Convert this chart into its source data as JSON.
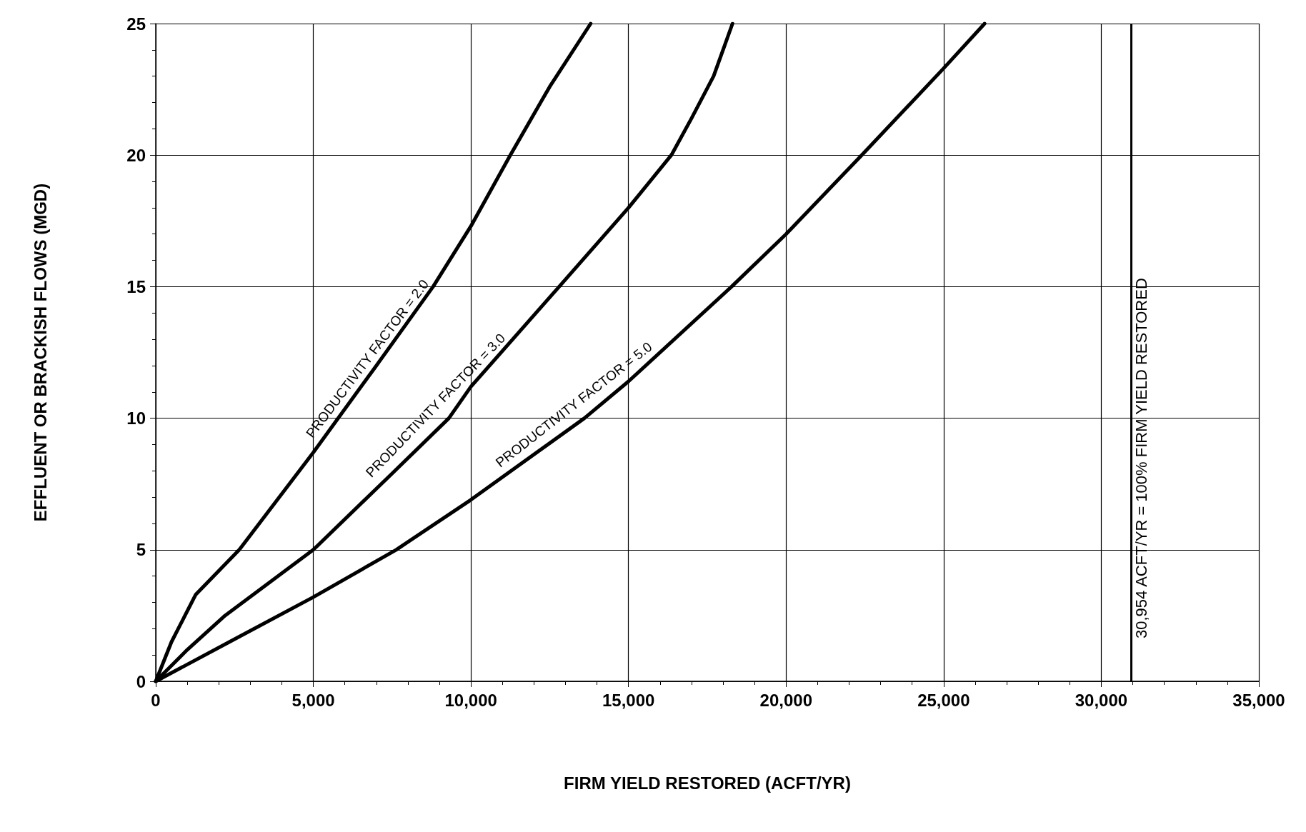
{
  "chart_data": {
    "type": "line",
    "xlabel": "FIRM YIELD RESTORED (ACFT/YR)",
    "ylabel": "EFFLUENT OR BRACKISH FLOWS (MGD)",
    "xlim": [
      0,
      35000
    ],
    "ylim": [
      0,
      25
    ],
    "xticks": [
      0,
      {
        "value": 5000,
        "label": "5,000"
      },
      {
        "value": 10000,
        "label": "10,000"
      },
      {
        "value": 15000,
        "label": "15,000"
      },
      {
        "value": 20000,
        "label": "20,000"
      },
      {
        "value": 25000,
        "label": "25,000"
      },
      {
        "value": 30000,
        "label": "30,000"
      },
      {
        "value": 35000,
        "label": "35,000"
      }
    ],
    "yticks": [
      0,
      5,
      10,
      15,
      20,
      25
    ],
    "grid": true,
    "marker": "none",
    "line_style": "solid",
    "series": [
      {
        "name": "PRODUCTIVITY FACTOR = 2.0",
        "color": "#000000",
        "x": [
          0,
          500,
          1270,
          2650,
          5000,
          7000,
          8800,
          10000,
          11250,
          12500,
          13800
        ],
        "values": [
          0,
          1.5,
          3.3,
          5,
          8.7,
          12,
          15,
          17.3,
          20,
          22.6,
          25
        ]
      },
      {
        "name": "PRODUCTIVITY FACTOR = 3.0",
        "color": "#000000",
        "x": [
          0,
          1000,
          2200,
          5000,
          7500,
          9300,
          10000,
          12800,
          15000,
          16360,
          17000,
          17700,
          18300
        ],
        "values": [
          0,
          1.2,
          2.5,
          5,
          7.9,
          10,
          11.2,
          15,
          18,
          20,
          21.4,
          23,
          25
        ]
      },
      {
        "name": "PRODUCTIVITY FACTOR = 5.0",
        "color": "#000000",
        "x": [
          0,
          2500,
          5000,
          7630,
          10000,
          13600,
          15000,
          18270,
          20000,
          22400,
          25000,
          26300
        ],
        "values": [
          0,
          1.6,
          3.2,
          5,
          6.9,
          10,
          11.4,
          15,
          17,
          20,
          23.3,
          25
        ]
      }
    ],
    "ref_lines": [
      {
        "axis": "x",
        "value": 30954,
        "label": "30,954 ACFT/YR = 100% FIRM YIELD RESTORED",
        "color": "#000000"
      }
    ]
  }
}
